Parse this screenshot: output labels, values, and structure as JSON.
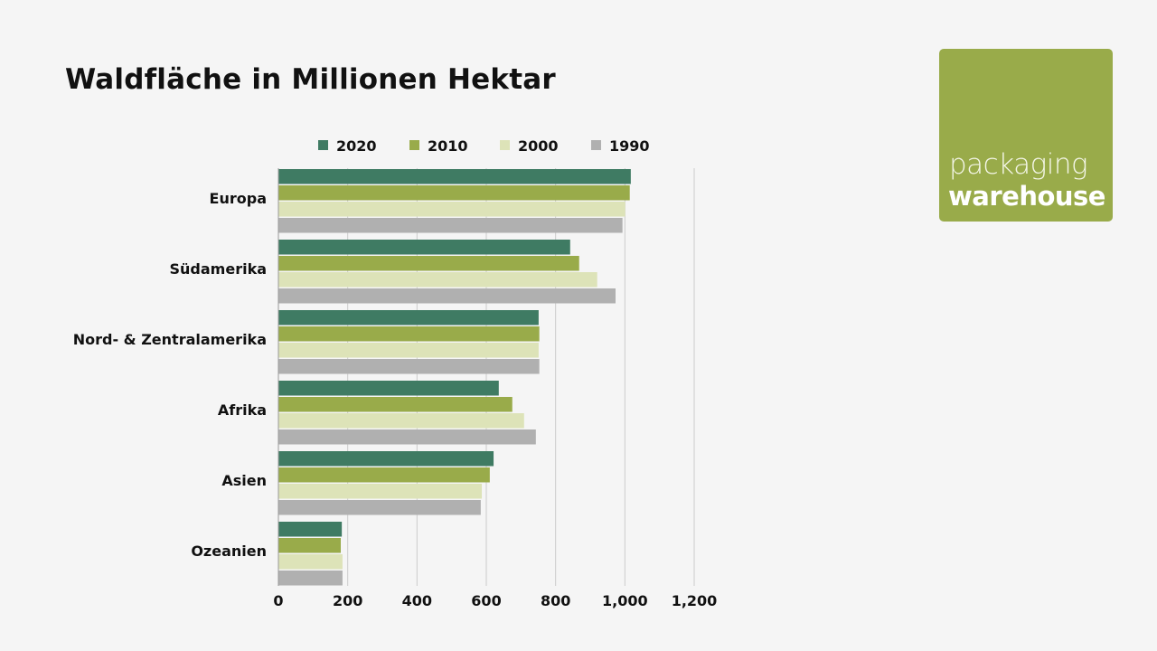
{
  "title": "Waldfläche in Millionen Hektar",
  "logo": {
    "line1": "packaging",
    "line2": "warehouse",
    "color": "#99ab4a"
  },
  "chart_data": {
    "type": "bar",
    "orientation": "horizontal",
    "title": "Waldfläche in Millionen Hektar",
    "categories": [
      "Europa",
      "Südamerika",
      "Nord- & Zentralamerika",
      "Afrika",
      "Asien",
      "Ozeanien"
    ],
    "series": [
      {
        "name": "2020",
        "color": "#3f7b63",
        "values": [
          1017,
          842,
          751,
          636,
          621,
          183
        ]
      },
      {
        "name": "2010",
        "color": "#99ab4a",
        "values": [
          1014,
          868,
          753,
          675,
          610,
          180
        ]
      },
      {
        "name": "2000",
        "color": "#dde3b8",
        "values": [
          1001,
          920,
          751,
          709,
          587,
          185
        ]
      },
      {
        "name": "1990",
        "color": "#b0b0b0",
        "values": [
          993,
          973,
          753,
          743,
          584,
          185
        ]
      }
    ],
    "xlim": [
      0,
      1200
    ],
    "xticks": [
      "0",
      "200",
      "400",
      "600",
      "800",
      "1,000",
      "1,200"
    ],
    "xtick_values": [
      0,
      200,
      400,
      600,
      800,
      1000,
      1200
    ],
    "grid": true,
    "legend": "top"
  }
}
